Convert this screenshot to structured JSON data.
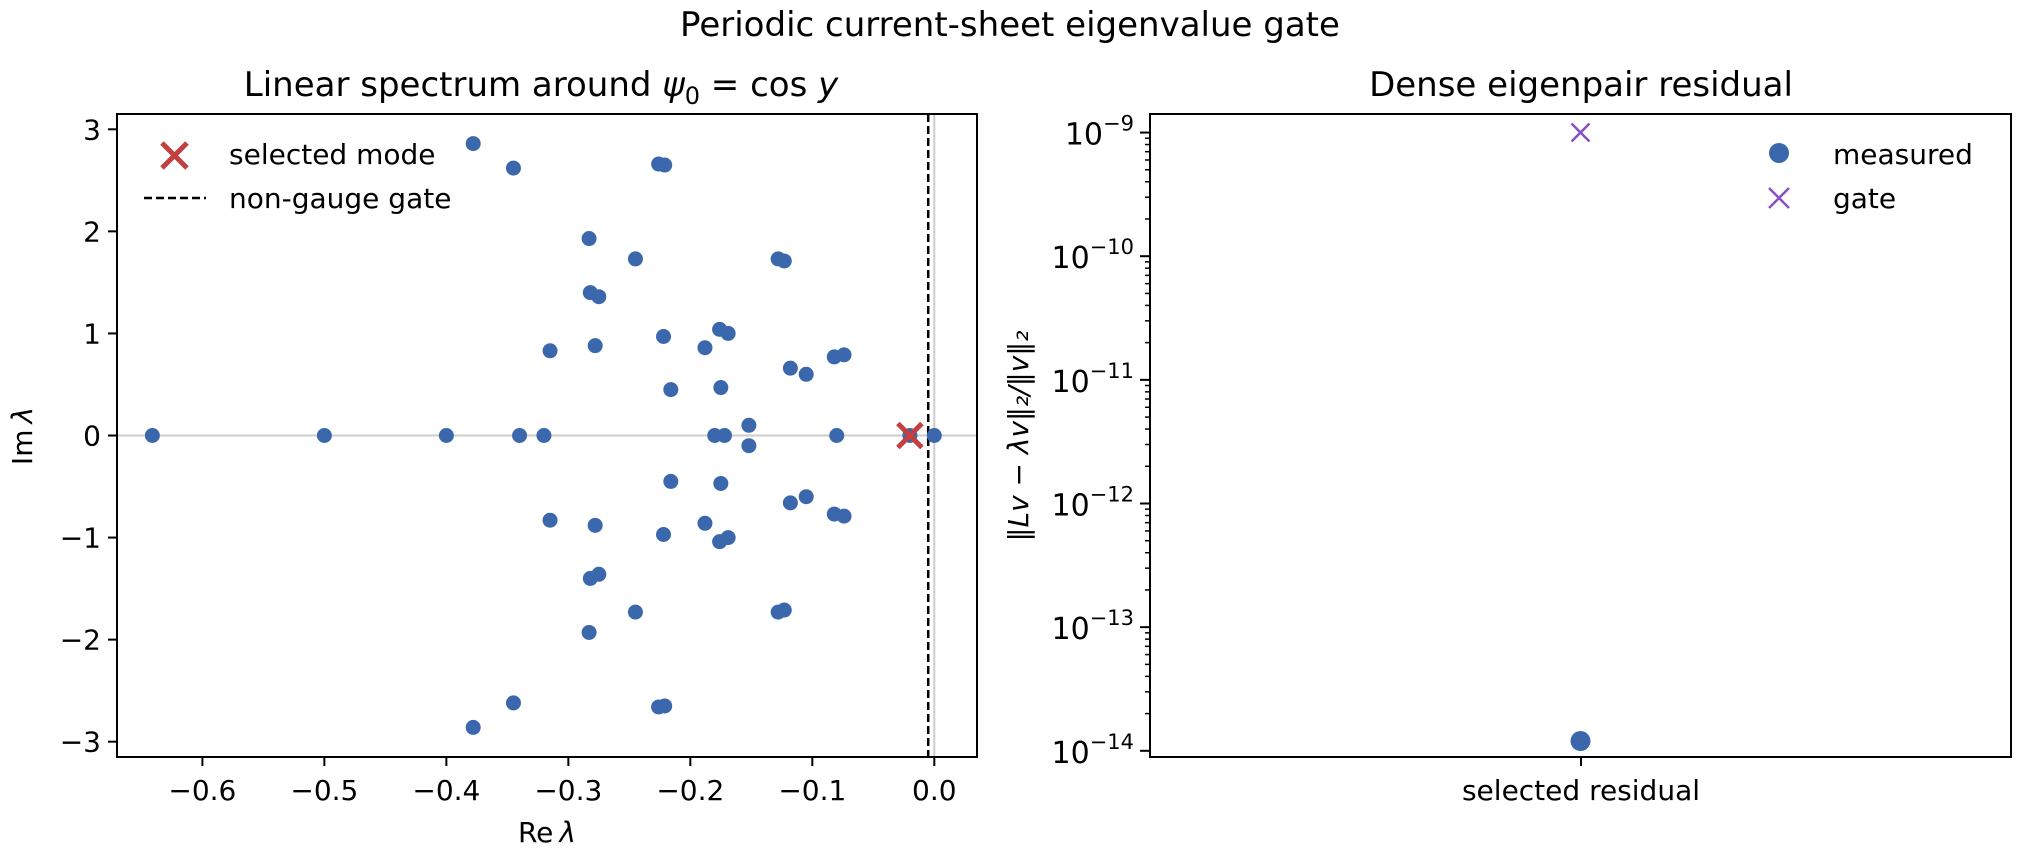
{
  "suptitle": "Periodic current-sheet eigenvalue gate",
  "colors": {
    "points": "#3b68ad",
    "selected": "#c24040",
    "gate_marker": "#8a4fbe",
    "gate_line": "#000000",
    "zero_lines": "#cccccc"
  },
  "chart_data": [
    {
      "type": "scatter",
      "title": "Linear spectrum around ψ₀ = cos y",
      "title_prefix": "Linear spectrum around ",
      "title_psi": "ψ",
      "title_sub": "0",
      "title_rest": " = cos ",
      "title_y": "y",
      "xlabel": "Re λ",
      "xlabel_main": "Re",
      "xlabel_sym": "λ",
      "ylabel": "Im λ",
      "ylabel_main": "Im",
      "ylabel_sym": "λ",
      "xlim": [
        -0.67,
        0.035
      ],
      "ylim": [
        -3.15,
        3.15
      ],
      "xticks": [
        -0.6,
        -0.5,
        -0.4,
        -0.3,
        -0.2,
        -0.1,
        0.0
      ],
      "xtick_labels": [
        "−0.6",
        "−0.5",
        "−0.4",
        "−0.3",
        "−0.2",
        "−0.1",
        "0.0"
      ],
      "yticks": [
        -3,
        -2,
        -1,
        0,
        1,
        2,
        3
      ],
      "ytick_labels": [
        "−3",
        "−2",
        "−1",
        "0",
        "1",
        "2",
        "3"
      ],
      "gate_x": -0.005,
      "selected_mode": {
        "x": -0.02,
        "y": 0.0
      },
      "legend": {
        "placement": "upper-left",
        "selected_label": "selected mode",
        "gate_label": "non-gauge gate"
      },
      "points": [
        [
          -0.641,
          0
        ],
        [
          -0.5,
          0
        ],
        [
          -0.4,
          0
        ],
        [
          -0.34,
          0
        ],
        [
          -0.32,
          0
        ],
        [
          -0.18,
          0
        ],
        [
          -0.172,
          0
        ],
        [
          -0.08,
          0
        ],
        [
          -0.02,
          0
        ],
        [
          0.0,
          0
        ],
        [
          -0.378,
          2.86
        ],
        [
          -0.378,
          -2.86
        ],
        [
          -0.345,
          2.62
        ],
        [
          -0.345,
          -2.62
        ],
        [
          -0.226,
          2.66
        ],
        [
          -0.226,
          -2.66
        ],
        [
          -0.221,
          2.65
        ],
        [
          -0.221,
          -2.65
        ],
        [
          -0.283,
          1.93
        ],
        [
          -0.283,
          -1.93
        ],
        [
          -0.245,
          1.73
        ],
        [
          -0.245,
          -1.73
        ],
        [
          -0.128,
          1.73
        ],
        [
          -0.128,
          -1.73
        ],
        [
          -0.123,
          1.71
        ],
        [
          -0.123,
          -1.71
        ],
        [
          -0.282,
          1.4
        ],
        [
          -0.282,
          -1.4
        ],
        [
          -0.275,
          1.36
        ],
        [
          -0.275,
          -1.36
        ],
        [
          -0.315,
          0.83
        ],
        [
          -0.315,
          -0.83
        ],
        [
          -0.278,
          0.88
        ],
        [
          -0.278,
          -0.88
        ],
        [
          -0.222,
          0.97
        ],
        [
          -0.222,
          -0.97
        ],
        [
          -0.176,
          1.04
        ],
        [
          -0.176,
          -1.04
        ],
        [
          -0.169,
          1.0
        ],
        [
          -0.169,
          -1.0
        ],
        [
          -0.188,
          0.86
        ],
        [
          -0.188,
          -0.86
        ],
        [
          -0.216,
          0.45
        ],
        [
          -0.216,
          -0.45
        ],
        [
          -0.175,
          0.47
        ],
        [
          -0.175,
          -0.47
        ],
        [
          -0.152,
          0.1
        ],
        [
          -0.152,
          -0.1
        ],
        [
          -0.118,
          0.66
        ],
        [
          -0.118,
          -0.66
        ],
        [
          -0.105,
          0.6
        ],
        [
          -0.105,
          -0.6
        ],
        [
          -0.082,
          0.77
        ],
        [
          -0.082,
          -0.77
        ],
        [
          -0.074,
          0.79
        ],
        [
          -0.074,
          -0.79
        ]
      ]
    },
    {
      "type": "scatter",
      "title": "Dense eigenpair residual",
      "ylabel": "‖Lv − λv‖₂/‖v‖₂",
      "yscale": "log",
      "ylim_log10": [
        -14.05,
        -8.85
      ],
      "ytick_exps": [
        -14,
        -13,
        -12,
        -11,
        -10,
        -9
      ],
      "ytick_base": "10",
      "ytick_exp_labels": [
        "−14",
        "−13",
        "−12",
        "−11",
        "−10",
        "−9"
      ],
      "category": "selected residual",
      "measured": 1.2e-14,
      "gate": 1e-09,
      "legend": {
        "placement": "upper-right",
        "measured_label": "measured",
        "gate_label": "gate"
      }
    }
  ]
}
